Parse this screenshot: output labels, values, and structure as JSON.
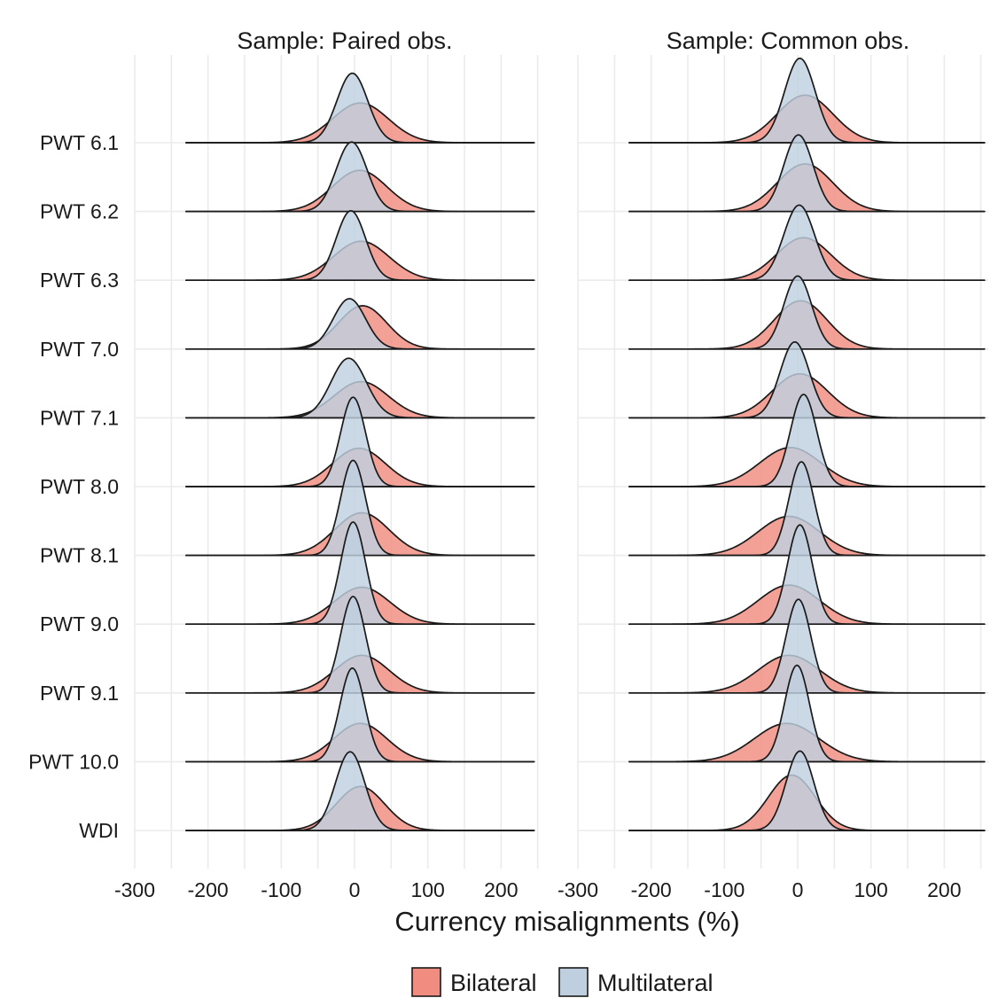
{
  "chart_data": [
    {
      "type": "area",
      "chart_kind": "ridgeline-density",
      "title": "Sample: Paired obs.",
      "xlim": [
        -300,
        260
      ],
      "x_ticks": [
        -300,
        -200,
        -100,
        0,
        100,
        200
      ],
      "x_tick_labels": [
        "-300",
        "-200",
        "-100",
        "0",
        "100",
        "200"
      ],
      "x_range_of_curves": [
        -230,
        245
      ],
      "grid": true,
      "rows": [
        {
          "label": "PWT 6.1",
          "bilateral": {
            "mean": 8,
            "sd": 38,
            "peak": 0.56
          },
          "multilateral": {
            "mean": -3,
            "sd": 21,
            "peak": 0.98
          }
        },
        {
          "label": "PWT 6.2",
          "bilateral": {
            "mean": 7,
            "sd": 37,
            "peak": 0.58
          },
          "multilateral": {
            "mean": -4,
            "sd": 21,
            "peak": 0.98
          }
        },
        {
          "label": "PWT 6.3",
          "bilateral": {
            "mean": 9,
            "sd": 38,
            "peak": 0.55
          },
          "multilateral": {
            "mean": -5,
            "sd": 20,
            "peak": 0.98
          }
        },
        {
          "label": "PWT 7.0",
          "bilateral": {
            "mean": 11,
            "sd": 33,
            "peak": 0.61
          },
          "multilateral": {
            "mean": -7,
            "sd": 22,
            "peak": 0.71
          }
        },
        {
          "label": "PWT 7.1",
          "bilateral": {
            "mean": 9,
            "sd": 37,
            "peak": 0.51
          },
          "multilateral": {
            "mean": -8,
            "sd": 24,
            "peak": 0.84
          }
        },
        {
          "label": "PWT 8.0",
          "bilateral": {
            "mean": 6,
            "sd": 36,
            "peak": 0.54
          },
          "multilateral": {
            "mean": -2,
            "sd": 17,
            "peak": 1.26
          }
        },
        {
          "label": "PWT 8.1",
          "bilateral": {
            "mean": 10,
            "sd": 37,
            "peak": 0.6
          },
          "multilateral": {
            "mean": -2,
            "sd": 17,
            "peak": 1.34
          }
        },
        {
          "label": "PWT 9.0",
          "bilateral": {
            "mean": 10,
            "sd": 38,
            "peak": 0.52
          },
          "multilateral": {
            "mean": -2,
            "sd": 17,
            "peak": 1.44
          }
        },
        {
          "label": "PWT 9.1",
          "bilateral": {
            "mean": 10,
            "sd": 37,
            "peak": 0.53
          },
          "multilateral": {
            "mean": -2,
            "sd": 17,
            "peak": 1.36
          }
        },
        {
          "label": "PWT 10.0",
          "bilateral": {
            "mean": 8,
            "sd": 36,
            "peak": 0.54
          },
          "multilateral": {
            "mean": -3,
            "sd": 17,
            "peak": 1.32
          }
        },
        {
          "label": "WDI",
          "bilateral": {
            "mean": 8,
            "sd": 33,
            "peak": 0.62
          },
          "multilateral": {
            "mean": -6,
            "sd": 20,
            "peak": 1.11
          }
        }
      ]
    },
    {
      "type": "area",
      "chart_kind": "ridgeline-density",
      "title": "Sample: Common obs.",
      "xlim": [
        -300,
        260
      ],
      "x_ticks": [
        -300,
        -200,
        -100,
        0,
        100,
        200
      ],
      "x_tick_labels": [
        "-300",
        "-200",
        "-100",
        "0",
        "100",
        "200"
      ],
      "x_range_of_curves": [
        -230,
        255
      ],
      "grid": true,
      "rows": [
        {
          "label": "PWT 6.1",
          "bilateral": {
            "mean": 10,
            "sd": 38,
            "peak": 0.67
          },
          "multilateral": {
            "mean": 3,
            "sd": 21,
            "peak": 1.19
          }
        },
        {
          "label": "PWT 6.2",
          "bilateral": {
            "mean": 10,
            "sd": 38,
            "peak": 0.67
          },
          "multilateral": {
            "mean": 1,
            "sd": 20,
            "peak": 1.08
          }
        },
        {
          "label": "PWT 6.3",
          "bilateral": {
            "mean": 8,
            "sd": 37,
            "peak": 0.6
          },
          "multilateral": {
            "mean": 2,
            "sd": 21,
            "peak": 1.06
          }
        },
        {
          "label": "PWT 7.0",
          "bilateral": {
            "mean": 4,
            "sd": 36,
            "peak": 0.68
          },
          "multilateral": {
            "mean": 0,
            "sd": 19,
            "peak": 1.03
          }
        },
        {
          "label": "PWT 7.1",
          "bilateral": {
            "mean": 3,
            "sd": 38,
            "peak": 0.62
          },
          "multilateral": {
            "mean": -4,
            "sd": 20,
            "peak": 1.07
          }
        },
        {
          "label": "PWT 8.0",
          "bilateral": {
            "mean": -10,
            "sd": 42,
            "peak": 0.55
          },
          "multilateral": {
            "mean": 8,
            "sd": 18,
            "peak": 1.3
          }
        },
        {
          "label": "PWT 8.1",
          "bilateral": {
            "mean": -12,
            "sd": 42,
            "peak": 0.55
          },
          "multilateral": {
            "mean": 5,
            "sd": 17,
            "peak": 1.32
          }
        },
        {
          "label": "PWT 9.0",
          "bilateral": {
            "mean": -12,
            "sd": 42,
            "peak": 0.55
          },
          "multilateral": {
            "mean": 3,
            "sd": 17,
            "peak": 1.4
          }
        },
        {
          "label": "PWT 9.1",
          "bilateral": {
            "mean": -12,
            "sd": 42,
            "peak": 0.53
          },
          "multilateral": {
            "mean": 1,
            "sd": 17,
            "peak": 1.32
          }
        },
        {
          "label": "PWT 10.0",
          "bilateral": {
            "mean": -15,
            "sd": 44,
            "peak": 0.54
          },
          "multilateral": {
            "mean": -1,
            "sd": 17,
            "peak": 1.36
          }
        },
        {
          "label": "WDI",
          "bilateral": {
            "mean": -8,
            "sd": 32,
            "peak": 0.78
          },
          "multilateral": {
            "mean": 3,
            "sd": 19,
            "peak": 1.12
          }
        }
      ]
    }
  ],
  "xlabel": "Currency misalignments (%)",
  "legend": {
    "placement": "bottom",
    "items": [
      {
        "label": "Bilateral",
        "color": "#f08c80"
      },
      {
        "label": "Multilateral",
        "color": "#c0cfdf"
      }
    ]
  },
  "colors": {
    "bilateral": "#f08c80",
    "multilateral": "#c0cfdf",
    "outline": "#1a1a1a",
    "grid": "#ebebeb"
  }
}
